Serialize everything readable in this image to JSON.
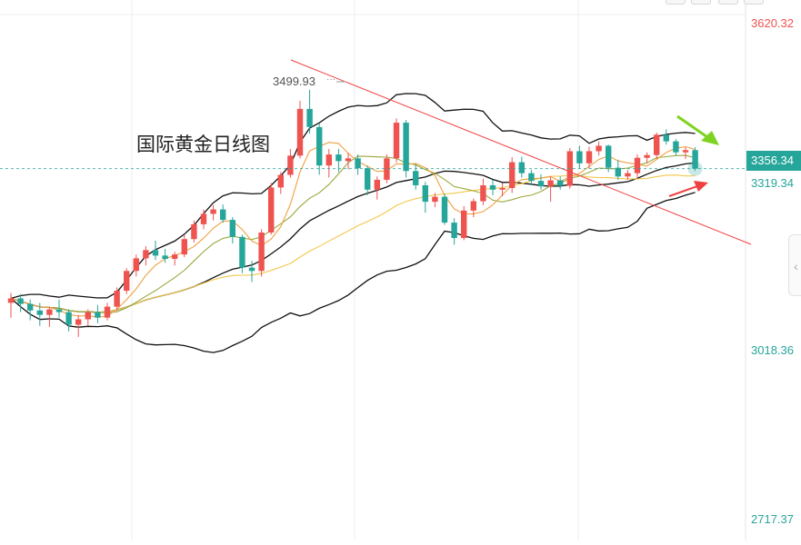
{
  "title": "国际黄金日线图",
  "price_axis": {
    "labels": [
      {
        "text": "3620.32",
        "value": 3620.32,
        "color": "#ef5350"
      },
      {
        "text": "3319.34",
        "value": 3319.34,
        "color": "#26a69a"
      },
      {
        "text": "3018.36",
        "value": 3018.36,
        "color": "#26a69a"
      },
      {
        "text": "2717.37",
        "value": 2717.37,
        "color": "#26a69a"
      }
    ],
    "current_price": {
      "text": "3356.34",
      "value": 3356.34,
      "color": "#26a69a"
    }
  },
  "annotations": {
    "peak_label": "3499.93",
    "peak_dots": "···"
  },
  "toolbar_icons": [
    "square-icon",
    "square-icon",
    "square-icon",
    "square-icon"
  ],
  "side_tab_icon": "chevron-left-icon",
  "colors": {
    "up": "#ef5350",
    "down": "#26a69a",
    "bollinger": "#111111",
    "ma_fast": "#f0a040",
    "ma_mid": "#9aa83c",
    "ma_slow": "#f2c84a",
    "trendline": "#f04444",
    "arrow_down": "#7ed321",
    "arrow_up": "#f04040",
    "grid": "#eeeeee"
  },
  "chart_data": {
    "type": "candlestick",
    "title": "国际黄金日线图",
    "ylim": [
      2717.37,
      3620.32
    ],
    "ohlc": [
      [
        3112,
        3130,
        3085,
        3120
      ],
      [
        3120,
        3128,
        3095,
        3110
      ],
      [
        3110,
        3118,
        3080,
        3098
      ],
      [
        3098,
        3112,
        3070,
        3090
      ],
      [
        3090,
        3105,
        3068,
        3100
      ],
      [
        3100,
        3118,
        3085,
        3095
      ],
      [
        3095,
        3100,
        3060,
        3072
      ],
      [
        3072,
        3090,
        3050,
        3082
      ],
      [
        3082,
        3100,
        3070,
        3095
      ],
      [
        3095,
        3108,
        3075,
        3085
      ],
      [
        3085,
        3112,
        3080,
        3105
      ],
      [
        3105,
        3140,
        3098,
        3134
      ],
      [
        3134,
        3175,
        3128,
        3170
      ],
      [
        3170,
        3200,
        3160,
        3193
      ],
      [
        3193,
        3215,
        3180,
        3208
      ],
      [
        3208,
        3225,
        3190,
        3198
      ],
      [
        3198,
        3210,
        3185,
        3192
      ],
      [
        3192,
        3205,
        3180,
        3200
      ],
      [
        3200,
        3235,
        3195,
        3228
      ],
      [
        3228,
        3262,
        3222,
        3255
      ],
      [
        3255,
        3282,
        3246,
        3274
      ],
      [
        3274,
        3290,
        3262,
        3282
      ],
      [
        3282,
        3291,
        3258,
        3263
      ],
      [
        3263,
        3268,
        3220,
        3232
      ],
      [
        3232,
        3236,
        3166,
        3176
      ],
      [
        3176,
        3188,
        3150,
        3170
      ],
      [
        3170,
        3246,
        3160,
        3240
      ],
      [
        3240,
        3330,
        3236,
        3322
      ],
      [
        3322,
        3350,
        3310,
        3345
      ],
      [
        3345,
        3392,
        3340,
        3380
      ],
      [
        3380,
        3480,
        3375,
        3465
      ],
      [
        3465,
        3499.93,
        3420,
        3432
      ],
      [
        3432,
        3438,
        3345,
        3362
      ],
      [
        3362,
        3392,
        3340,
        3382
      ],
      [
        3382,
        3392,
        3350,
        3370
      ],
      [
        3370,
        3385,
        3355,
        3375
      ],
      [
        3375,
        3382,
        3345,
        3357
      ],
      [
        3357,
        3362,
        3308,
        3318
      ],
      [
        3318,
        3342,
        3300,
        3336
      ],
      [
        3336,
        3382,
        3330,
        3375
      ],
      [
        3375,
        3448,
        3368,
        3440
      ],
      [
        3440,
        3445,
        3340,
        3352
      ],
      [
        3352,
        3365,
        3318,
        3326
      ],
      [
        3326,
        3332,
        3276,
        3296
      ],
      [
        3296,
        3312,
        3286,
        3305
      ],
      [
        3305,
        3310,
        3254,
        3258
      ],
      [
        3258,
        3266,
        3218,
        3230
      ],
      [
        3230,
        3288,
        3226,
        3280
      ],
      [
        3280,
        3302,
        3268,
        3297
      ],
      [
        3297,
        3338,
        3290,
        3326
      ],
      [
        3326,
        3336,
        3308,
        3318
      ],
      [
        3318,
        3330,
        3306,
        3321
      ],
      [
        3321,
        3377,
        3312,
        3368
      ],
      [
        3368,
        3378,
        3340,
        3348
      ],
      [
        3348,
        3354,
        3326,
        3334
      ],
      [
        3334,
        3346,
        3318,
        3324
      ],
      [
        3324,
        3342,
        3296,
        3335
      ],
      [
        3335,
        3342,
        3318,
        3325
      ],
      [
        3325,
        3394,
        3320,
        3388
      ],
      [
        3388,
        3398,
        3356,
        3366
      ],
      [
        3366,
        3396,
        3356,
        3388
      ],
      [
        3388,
        3406,
        3380,
        3398
      ],
      [
        3398,
        3400,
        3350,
        3358
      ],
      [
        3358,
        3372,
        3336,
        3342
      ],
      [
        3342,
        3354,
        3336,
        3348
      ],
      [
        3348,
        3382,
        3340,
        3376
      ],
      [
        3376,
        3386,
        3366,
        3381
      ],
      [
        3381,
        3422,
        3374,
        3418
      ],
      [
        3418,
        3428,
        3400,
        3406
      ],
      [
        3406,
        3410,
        3380,
        3386
      ],
      [
        3386,
        3395,
        3374,
        3390
      ],
      [
        3390,
        3395,
        3352,
        3356.34
      ]
    ]
  }
}
